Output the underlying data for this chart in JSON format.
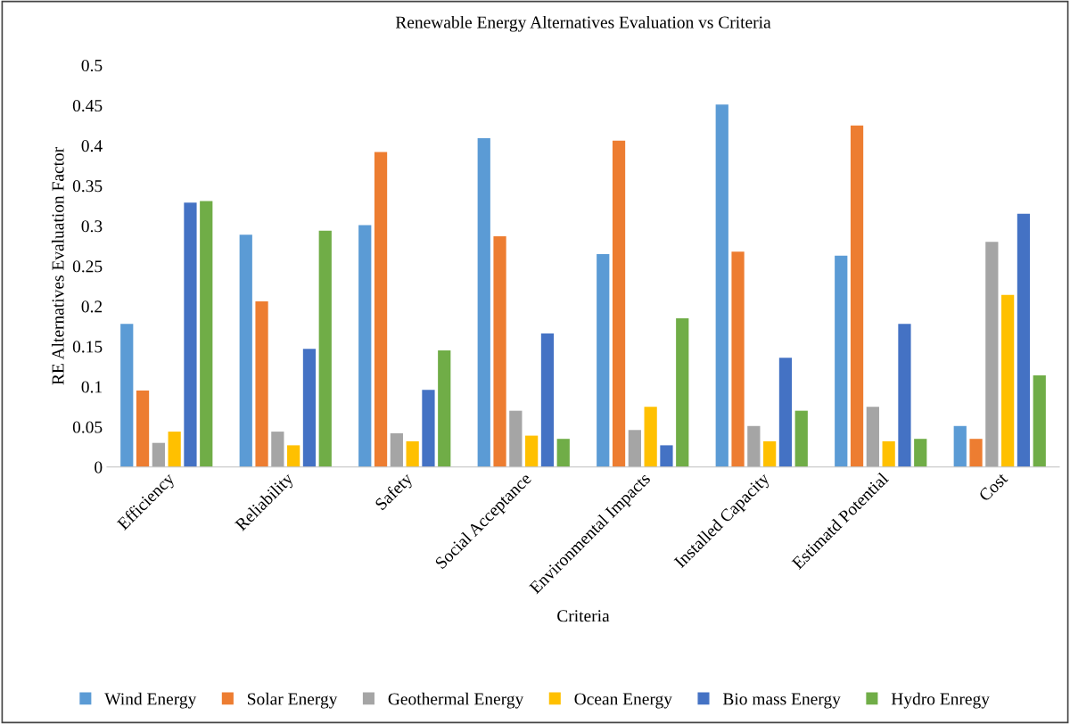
{
  "chart_data": {
    "type": "bar",
    "title": "Renewable Energy Alternatives Evaluation vs Criteria",
    "xlabel": "Criteria",
    "ylabel": "RE Alternatives Evaluation Factor",
    "categories": [
      "Efficiency",
      "Reliability",
      "Safety",
      "Social Acceptance",
      "Environmental Impacts",
      "Installed Capacity",
      "Estimatd Potential",
      "Cost"
    ],
    "series": [
      {
        "name": "Wind Energy",
        "color": "#5b9bd5",
        "values": [
          0.178,
          0.289,
          0.301,
          0.409,
          0.265,
          0.451,
          0.263,
          0.051
        ]
      },
      {
        "name": "Solar Energy",
        "color": "#ed7d31",
        "values": [
          0.095,
          0.206,
          0.392,
          0.287,
          0.406,
          0.268,
          0.425,
          0.035
        ]
      },
      {
        "name": "Geothermal Energy",
        "color": "#a5a5a5",
        "values": [
          0.03,
          0.044,
          0.042,
          0.07,
          0.046,
          0.051,
          0.075,
          0.28
        ]
      },
      {
        "name": "Ocean Energy",
        "color": "#ffc000",
        "values": [
          0.044,
          0.027,
          0.032,
          0.039,
          0.075,
          0.032,
          0.032,
          0.214
        ]
      },
      {
        "name": "Bio mass Energy",
        "color": "#4472c4",
        "values": [
          0.329,
          0.147,
          0.096,
          0.166,
          0.027,
          0.136,
          0.178,
          0.315
        ]
      },
      {
        "name": "Hydro Enregy",
        "color": "#70ad47",
        "values": [
          0.331,
          0.294,
          0.145,
          0.035,
          0.185,
          0.07,
          0.035,
          0.114
        ]
      }
    ],
    "ylim": [
      0,
      0.5
    ],
    "yticks": [
      0,
      0.05,
      0.1,
      0.15,
      0.2,
      0.25,
      0.3,
      0.35,
      0.4,
      0.45,
      0.5
    ],
    "grid": false,
    "legend": "bottom"
  }
}
